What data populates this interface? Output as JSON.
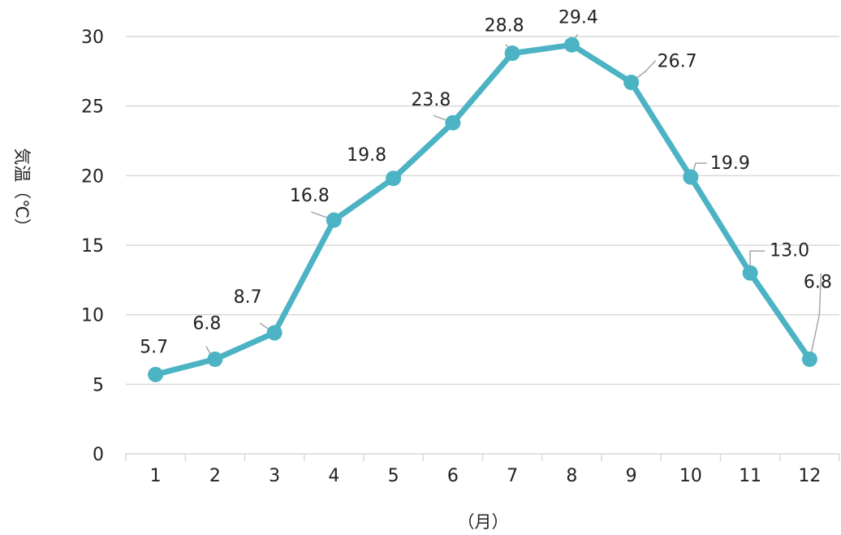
{
  "chart_data": {
    "type": "line",
    "title": "",
    "xlabel": "（月）",
    "ylabel": "気温（℃）",
    "categories": [
      "1",
      "2",
      "3",
      "4",
      "5",
      "6",
      "7",
      "8",
      "9",
      "10",
      "11",
      "12"
    ],
    "series": [
      {
        "values": [
          5.7,
          6.8,
          8.7,
          16.8,
          19.8,
          23.8,
          28.8,
          29.4,
          26.7,
          19.9,
          13.0,
          6.8
        ],
        "labels": [
          "5.7",
          "6.8",
          "8.7",
          "16.8",
          "19.8",
          "23.8",
          "28.8",
          "29.4",
          "26.7",
          "19.9",
          "13.0",
          "6.8"
        ],
        "color": "#4bb3c3"
      }
    ],
    "ylim": [
      0,
      30
    ],
    "yticks": [
      "0",
      "5",
      "10",
      "15",
      "20",
      "25",
      "30"
    ],
    "grid": true,
    "legend": "none",
    "colors": {
      "line": "#4bb3c3",
      "grid": "#d9d9d9",
      "leader": "#a6a6a6"
    }
  }
}
